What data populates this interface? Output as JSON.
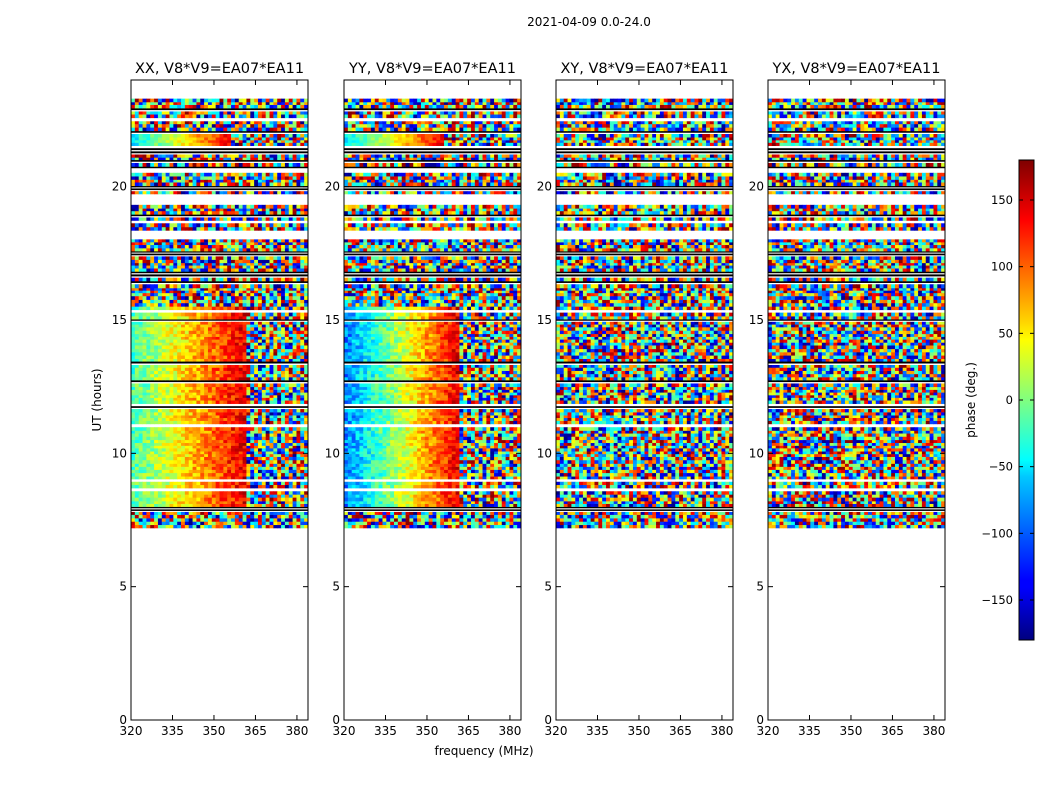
{
  "chart_data": {
    "type": "heatmap",
    "suptitle": "2021-04-09 0.0-24.0",
    "xlabel": "frequency (MHz)",
    "ylabel": "UT (hours)",
    "xlim": [
      320,
      384
    ],
    "ylim": [
      0,
      24
    ],
    "xticks": [
      320,
      335,
      350,
      365,
      380
    ],
    "yticks": [
      0,
      5,
      10,
      15,
      20
    ],
    "colorbar": {
      "label": "phase (deg.)",
      "range": [
        -180,
        180
      ],
      "ticks": [
        150,
        100,
        50,
        0,
        -50,
        -100,
        -150
      ],
      "colormap": "jet"
    },
    "data_time_range_hours": [
      7.2,
      23.3
    ],
    "low_band_dropout_hours": [
      [
        7.8,
        8.0
      ],
      [
        17.3,
        17.5
      ]
    ],
    "panels": [
      {
        "title": "XX, V8*V9=EA07*EA11",
        "polarization": "XX",
        "pattern": "gradient"
      },
      {
        "title": "YY, V8*V9=EA07*EA11",
        "polarization": "YY",
        "pattern": "gradient"
      },
      {
        "title": "XY, V8*V9=EA07*EA11",
        "polarization": "XY",
        "pattern": "noise"
      },
      {
        "title": "YX, V8*V9=EA07*EA11",
        "polarization": "YX",
        "pattern": "noise"
      }
    ]
  }
}
